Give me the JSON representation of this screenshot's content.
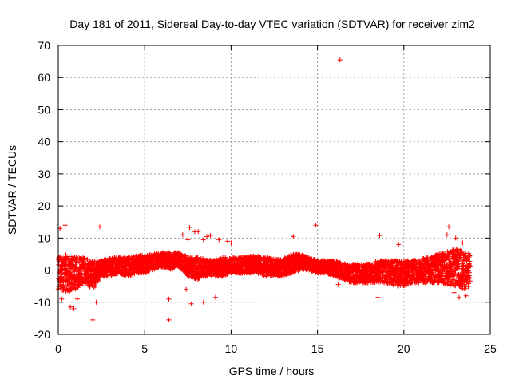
{
  "chart_data": {
    "type": "scatter",
    "title": "Day 181 of 2011, Sidereal Day-to-day VTEC variation (SDTVAR) for receiver zim2",
    "xlabel": "GPS time / hours",
    "ylabel": "SDTVAR / TECUs",
    "xlim": [
      0,
      25
    ],
    "ylim": [
      -20,
      70
    ],
    "xticks": [
      0,
      5,
      10,
      15,
      20,
      25
    ],
    "yticks": [
      -20,
      -10,
      0,
      10,
      20,
      30,
      40,
      50,
      60,
      70
    ],
    "grid": true,
    "marker": "+",
    "series_color": "#ff0000",
    "band": [
      [
        0.0,
        -6,
        4
      ],
      [
        0.5,
        -7,
        5
      ],
      [
        1.0,
        -6,
        4
      ],
      [
        1.5,
        -4,
        4
      ],
      [
        2.0,
        -6,
        3
      ],
      [
        2.5,
        -2,
        3
      ],
      [
        3.0,
        -2,
        4
      ],
      [
        3.5,
        -1,
        4
      ],
      [
        4.0,
        -2,
        4
      ],
      [
        4.5,
        -1,
        4.5
      ],
      [
        5.0,
        -1,
        5
      ],
      [
        5.5,
        0,
        5
      ],
      [
        6.0,
        1,
        5.5
      ],
      [
        6.5,
        0,
        5.5
      ],
      [
        7.0,
        1,
        5.5
      ],
      [
        7.5,
        -2,
        4
      ],
      [
        8.0,
        -3,
        4
      ],
      [
        8.5,
        -2,
        3.5
      ],
      [
        9.0,
        -2,
        3
      ],
      [
        9.5,
        -2,
        4
      ],
      [
        10.0,
        -1,
        4
      ],
      [
        10.5,
        -1,
        4
      ],
      [
        11.0,
        -1,
        4.5
      ],
      [
        11.5,
        -1,
        4.5
      ],
      [
        12.0,
        -2,
        4
      ],
      [
        12.5,
        -2,
        3.5
      ],
      [
        13.0,
        -2,
        3.5
      ],
      [
        13.5,
        -1,
        5
      ],
      [
        14.0,
        0,
        5
      ],
      [
        14.5,
        0,
        4
      ],
      [
        15.0,
        -1,
        3
      ],
      [
        15.5,
        -1,
        3
      ],
      [
        16.0,
        -2,
        3
      ],
      [
        16.5,
        -3,
        2
      ],
      [
        17.0,
        -4,
        2
      ],
      [
        17.5,
        -4,
        2
      ],
      [
        18.0,
        -4,
        2
      ],
      [
        18.5,
        -4,
        3
      ],
      [
        19.0,
        -4,
        3
      ],
      [
        19.5,
        -5,
        3
      ],
      [
        20.0,
        -5,
        3
      ],
      [
        20.5,
        -4,
        3
      ],
      [
        21.0,
        -4,
        3.5
      ],
      [
        21.5,
        -4,
        4
      ],
      [
        22.0,
        -4,
        5
      ],
      [
        22.5,
        -5,
        6
      ],
      [
        23.0,
        -5,
        7
      ],
      [
        23.5,
        -6,
        6
      ],
      [
        23.83,
        -5,
        5
      ]
    ],
    "outliers": [
      [
        16.3,
        65.5
      ],
      [
        14.9,
        14.0
      ],
      [
        0.4,
        14.0
      ],
      [
        0.1,
        13.0
      ],
      [
        2.4,
        13.5
      ],
      [
        7.6,
        13.3
      ],
      [
        7.2,
        11.0
      ],
      [
        7.5,
        9.5
      ],
      [
        7.9,
        12.0
      ],
      [
        8.1,
        12.0
      ],
      [
        8.6,
        10.5
      ],
      [
        8.8,
        10.8
      ],
      [
        8.4,
        9.5
      ],
      [
        9.3,
        9.5
      ],
      [
        9.8,
        9.0
      ],
      [
        10.0,
        8.5
      ],
      [
        13.6,
        10.5
      ],
      [
        18.6,
        10.8
      ],
      [
        19.7,
        8.0
      ],
      [
        22.6,
        13.5
      ],
      [
        22.5,
        11.0
      ],
      [
        23.0,
        10.0
      ],
      [
        23.4,
        8.5
      ],
      [
        2.0,
        -15.5
      ],
      [
        6.4,
        -15.5
      ],
      [
        6.4,
        -9.0
      ],
      [
        7.7,
        -10.5
      ],
      [
        8.4,
        -10.0
      ],
      [
        9.1,
        -8.5
      ],
      [
        0.7,
        -11.5
      ],
      [
        0.9,
        -12.0
      ],
      [
        0.2,
        -9.0
      ],
      [
        2.2,
        -10.0
      ],
      [
        18.5,
        -8.5
      ],
      [
        23.2,
        -8.5
      ],
      [
        23.6,
        -8.0
      ],
      [
        22.9,
        -7.0
      ],
      [
        1.1,
        -9.0
      ],
      [
        16.2,
        -4.5
      ],
      [
        7.4,
        -6.0
      ]
    ]
  }
}
